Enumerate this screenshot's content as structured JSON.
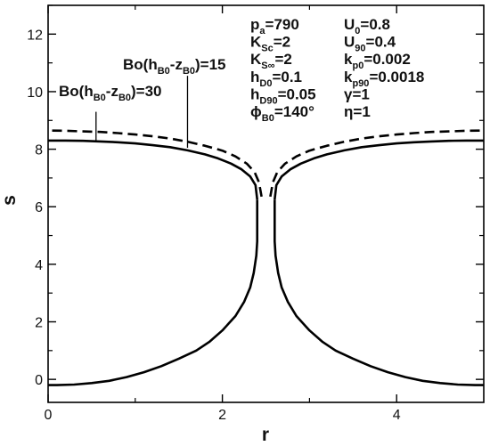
{
  "chart_data": {
    "type": "line",
    "xlabel": "r",
    "ylabel": "s",
    "xlim": [
      0,
      5
    ],
    "ylim": [
      -0.8,
      13
    ],
    "x_ticks": [
      0,
      2,
      4
    ],
    "y_ticks": [
      0,
      2,
      4,
      6,
      8,
      10,
      12
    ],
    "grid": false,
    "series": [
      {
        "style": "solid",
        "x": [
          2.4,
          2.4,
          2.39,
          2.36,
          2.32,
          2.25,
          2.15,
          2.0,
          1.85,
          1.7,
          1.5,
          1.3,
          1.1,
          0.9,
          0.7,
          0.5,
          0.3,
          0.1,
          0.0
        ],
        "y": [
          6.25,
          4.8,
          4.3,
          3.7,
          3.2,
          2.7,
          2.2,
          1.7,
          1.3,
          1.0,
          0.72,
          0.46,
          0.25,
          0.08,
          -0.05,
          -0.13,
          -0.18,
          -0.2,
          -0.2
        ]
      },
      {
        "style": "solid",
        "x": [
          2.4,
          2.38,
          2.32,
          2.22,
          2.1,
          1.95,
          1.8,
          1.6,
          1.4,
          1.2,
          1.0,
          0.8,
          0.6,
          0.4,
          0.2,
          0.0
        ],
        "y": [
          6.25,
          6.75,
          7.05,
          7.3,
          7.5,
          7.68,
          7.82,
          7.96,
          8.07,
          8.14,
          8.2,
          8.24,
          8.27,
          8.29,
          8.3,
          8.3
        ]
      },
      {
        "style": "solid",
        "x": [
          2.6,
          2.6,
          2.61,
          2.64,
          2.68,
          2.75,
          2.85,
          3.0,
          3.15,
          3.3,
          3.5,
          3.7,
          3.9,
          4.1,
          4.3,
          4.5,
          4.7,
          4.9,
          5.0
        ],
        "y": [
          6.25,
          4.8,
          4.3,
          3.7,
          3.2,
          2.7,
          2.2,
          1.7,
          1.3,
          1.0,
          0.72,
          0.46,
          0.25,
          0.08,
          -0.05,
          -0.13,
          -0.18,
          -0.2,
          -0.2
        ]
      },
      {
        "style": "solid",
        "x": [
          2.6,
          2.62,
          2.68,
          2.78,
          2.9,
          3.05,
          3.2,
          3.4,
          3.6,
          3.8,
          4.0,
          4.2,
          4.4,
          4.6,
          4.8,
          5.0
        ],
        "y": [
          6.25,
          6.75,
          7.05,
          7.3,
          7.5,
          7.68,
          7.82,
          7.96,
          8.07,
          8.14,
          8.2,
          8.24,
          8.27,
          8.29,
          8.3,
          8.3
        ]
      },
      {
        "style": "dashed",
        "x": [
          2.45,
          2.42,
          2.37,
          2.28,
          2.15,
          2.0,
          1.8,
          1.6,
          1.4,
          1.2,
          1.0,
          0.8,
          0.6,
          0.4,
          0.2,
          0.0
        ],
        "y": [
          6.35,
          6.85,
          7.2,
          7.5,
          7.75,
          7.95,
          8.12,
          8.26,
          8.37,
          8.45,
          8.51,
          8.56,
          8.6,
          8.62,
          8.64,
          8.65
        ]
      },
      {
        "style": "dashed",
        "x": [
          2.55,
          2.58,
          2.63,
          2.72,
          2.85,
          3.0,
          3.2,
          3.4,
          3.6,
          3.8,
          4.0,
          4.2,
          4.4,
          4.6,
          4.8,
          5.0
        ],
        "y": [
          6.35,
          6.85,
          7.2,
          7.5,
          7.75,
          7.95,
          8.12,
          8.26,
          8.37,
          8.45,
          8.51,
          8.56,
          8.6,
          8.62,
          8.64,
          8.65
        ]
      }
    ],
    "annotations": {
      "label_30": {
        "pre": "Bo(h",
        "sub1": "B0",
        "mid": "-z",
        "sub2": "B0",
        "post": ")=30",
        "pointer_x": 0.55,
        "pointer_y_top": 9.3,
        "pointer_y_bottom": 8.3
      },
      "label_15": {
        "pre": "Bo(h",
        "sub1": "B0",
        "mid": "-z",
        "sub2": "B0",
        "post": ")=15",
        "pointer_x": 1.6,
        "pointer_y_top": 10.55,
        "pointer_y_bottom": 8.05
      },
      "params_col1": [
        {
          "main": "p",
          "sub": "a",
          "rest": "=790"
        },
        {
          "main": "K",
          "sub": "Sc",
          "rest": "=2"
        },
        {
          "main": "K",
          "sub": "S∞",
          "rest": "=2"
        },
        {
          "main": "h",
          "sub": "D0",
          "rest": "=0.1"
        },
        {
          "main": "h",
          "sub": "D90",
          "rest": "=0.05"
        },
        {
          "main": "ϕ",
          "sub": "B0",
          "rest": "=140°"
        }
      ],
      "params_col2": [
        {
          "main": "U",
          "sub": "0",
          "rest": "=0.8"
        },
        {
          "main": "U",
          "sub": "90",
          "rest": "=0.4"
        },
        {
          "main": "k",
          "sub": "p0",
          "rest": "=0.002"
        },
        {
          "main": "k",
          "sub": "p90",
          "rest": "=0.0018"
        },
        {
          "main": "γ",
          "sub": "",
          "rest": "=1"
        },
        {
          "main": "η",
          "sub": "",
          "rest": "=1"
        }
      ]
    }
  }
}
